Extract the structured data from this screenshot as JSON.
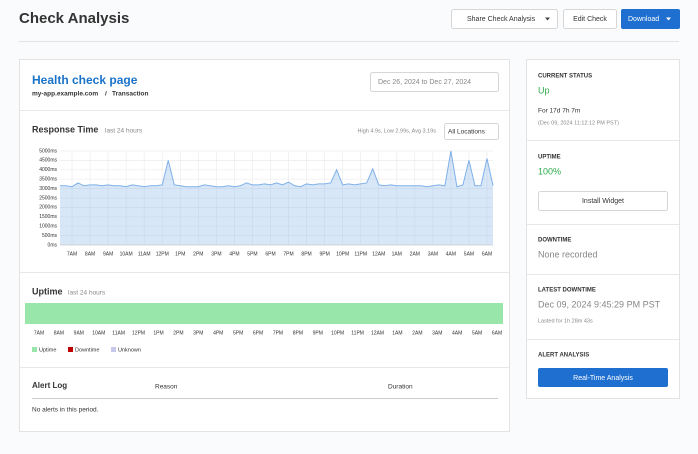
{
  "header": {
    "title": "Check Analysis",
    "buttons": [
      "Share Check Analysis",
      "Edit Check",
      "Download"
    ]
  },
  "check": {
    "name": "Health check page",
    "host": "my-app.example.com",
    "separator": "/",
    "kind": "Transaction",
    "date_range": "Dec 26, 2024 to Dec 27, 2024"
  },
  "chart_data": {
    "type": "area",
    "title": "Response Time",
    "subtitle": "last 24 hours",
    "stats": "High 4.9s, Low 2.99s, Avg 3.19s",
    "location_select": "All Locations",
    "color": "#7fb0e8",
    "grid": true,
    "categories": [
      null,
      null,
      "7AM",
      null,
      null,
      "8AM",
      null,
      null,
      "9AM",
      null,
      null,
      "10AM",
      null,
      null,
      "11AM",
      null,
      null,
      "12PM",
      null,
      null,
      "1PM",
      null,
      null,
      "2PM",
      null,
      null,
      "3PM",
      null,
      null,
      "4PM",
      null,
      null,
      "5PM",
      null,
      null,
      "6PM",
      null,
      null,
      "7PM",
      null,
      null,
      "8PM",
      null,
      null,
      "9PM",
      null,
      null,
      "10PM",
      null,
      null,
      "11PM",
      null,
      null,
      "12AM",
      null,
      null,
      "1AM",
      null,
      null,
      "2AM",
      null,
      null,
      "3AM",
      null,
      null,
      "4AM",
      null,
      null,
      "5AM",
      null,
      null,
      "6AM",
      null
    ],
    "values": [
      3150,
      3150,
      3100,
      3300,
      3150,
      3200,
      3200,
      3150,
      3200,
      3150,
      3150,
      3100,
      3200,
      3150,
      3100,
      3150,
      3150,
      3200,
      4500,
      3200,
      3150,
      3100,
      3100,
      3100,
      3200,
      3150,
      3100,
      3100,
      3150,
      3100,
      3150,
      3300,
      3200,
      3200,
      3250,
      3200,
      3300,
      3200,
      3350,
      3150,
      3100,
      3250,
      3200,
      3250,
      3250,
      3300,
      4000,
      3200,
      3250,
      3200,
      3250,
      3300,
      4050,
      3200,
      3150,
      3200,
      3150,
      3150,
      3150,
      3150,
      3150,
      3100,
      3150,
      3200,
      3150,
      5000,
      3100,
      3200,
      4500,
      3150,
      3150,
      4600,
      3150
    ],
    "ylim": [
      0,
      5000
    ],
    "yticks": [
      {
        "value": 0,
        "label": "0ms"
      },
      {
        "value": 500,
        "label": "500ms"
      },
      {
        "value": 1000,
        "label": "1000ms"
      },
      {
        "value": 1500,
        "label": "1500ms"
      },
      {
        "value": 2000,
        "label": "2000ms"
      },
      {
        "value": 2500,
        "label": "2500ms"
      },
      {
        "value": 3000,
        "label": "3000ms"
      },
      {
        "value": 3500,
        "label": "3500ms"
      },
      {
        "value": 4000,
        "label": "4000ms"
      },
      {
        "value": 4500,
        "label": "4500ms"
      },
      {
        "value": 5000,
        "label": "5000ms"
      }
    ]
  },
  "uptime": {
    "title": "Uptime",
    "subtitle": "last 24 hours",
    "x_labels": [
      "7AM",
      "8AM",
      "9AM",
      "10AM",
      "11AM",
      "12PM",
      "1PM",
      "2PM",
      "3PM",
      "4PM",
      "5PM",
      "6PM",
      "7PM",
      "8PM",
      "9PM",
      "10PM",
      "11PM",
      "12AM",
      "1AM",
      "2AM",
      "3AM",
      "4AM",
      "5AM",
      "6AM"
    ],
    "legend": [
      "Uptime",
      "Downtime",
      "Unknown"
    ]
  },
  "alert_log": {
    "title": "Alert Log",
    "columns": [
      "Reason",
      "Duration"
    ],
    "empty": "No alerts in this period."
  },
  "sidebar": {
    "current_status": {
      "label": "CURRENT STATUS",
      "value": "Up",
      "duration": "For 17d 7h 7m",
      "since": "(Dec 09, 2024 11:12:12 PM PST)"
    },
    "uptime": {
      "label": "UPTIME",
      "value": "100%",
      "button": "Install Widget"
    },
    "downtime": {
      "label": "DOWNTIME",
      "value": "None recorded"
    },
    "latest_downtime": {
      "label": "LATEST DOWNTIME",
      "value": "Dec 09, 2024 9:45:29 PM PST",
      "lasted": "Lasted for 1h 28m 43s"
    },
    "alert_analysis": {
      "label": "ALERT ANALYSIS",
      "button": "Real-Time Analysis"
    }
  }
}
